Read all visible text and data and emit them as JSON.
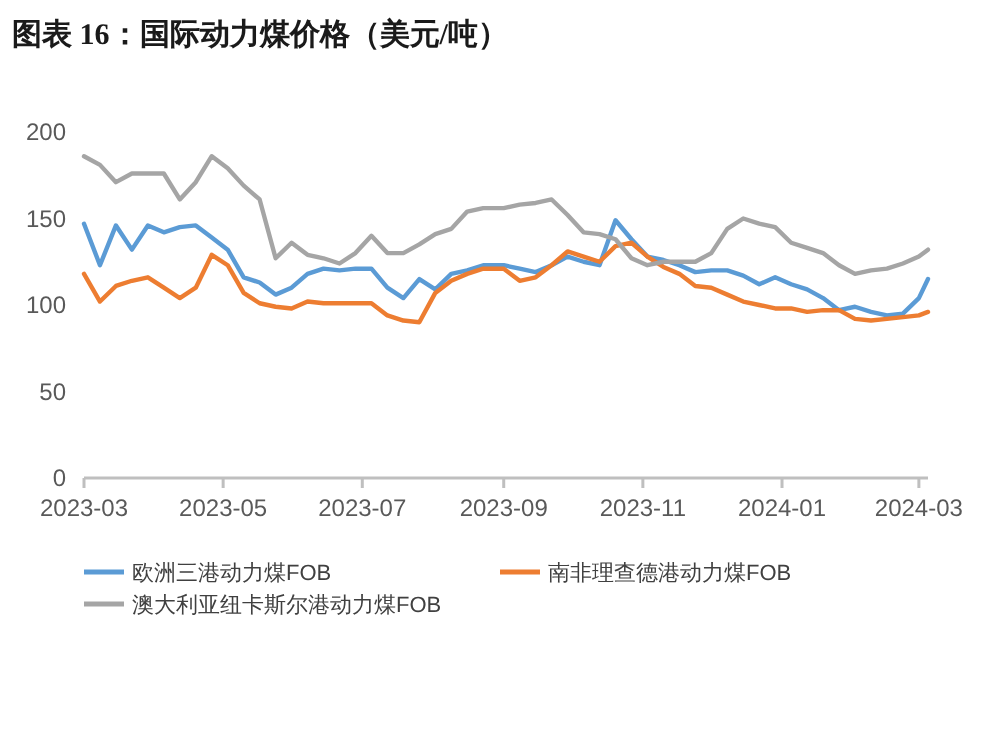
{
  "chart_data": {
    "type": "line",
    "title": "图表 16：国际动力煤价格（美元/吨）",
    "x": [
      "2023-03-01",
      "2023-03-08",
      "2023-03-15",
      "2023-03-22",
      "2023-03-29",
      "2023-04-05",
      "2023-04-12",
      "2023-04-19",
      "2023-04-26",
      "2023-05-03",
      "2023-05-10",
      "2023-05-17",
      "2023-05-24",
      "2023-05-31",
      "2023-06-07",
      "2023-06-14",
      "2023-06-21",
      "2023-06-28",
      "2023-07-05",
      "2023-07-12",
      "2023-07-19",
      "2023-07-26",
      "2023-08-02",
      "2023-08-09",
      "2023-08-16",
      "2023-08-23",
      "2023-09-01",
      "2023-09-08",
      "2023-09-15",
      "2023-09-22",
      "2023-09-29",
      "2023-10-06",
      "2023-10-13",
      "2023-10-20",
      "2023-10-27",
      "2023-11-03",
      "2023-11-10",
      "2023-11-17",
      "2023-11-24",
      "2023-12-01",
      "2023-12-08",
      "2023-12-15",
      "2023-12-22",
      "2023-12-29",
      "2024-01-05",
      "2024-01-12",
      "2024-01-19",
      "2024-01-26",
      "2024-02-02",
      "2024-02-09",
      "2024-02-16",
      "2024-02-23",
      "2024-03-01",
      "2024-03-05"
    ],
    "series": [
      {
        "name": "欧洲三港动力煤FOB",
        "color": "#5b9bd5",
        "values": [
          147,
          123,
          146,
          132,
          146,
          142,
          145,
          146,
          139,
          132,
          116,
          113,
          106,
          110,
          118,
          121,
          120,
          121,
          121,
          110,
          104,
          115,
          109,
          118,
          120,
          123,
          123,
          121,
          119,
          123,
          128,
          125,
          123,
          149,
          138,
          128,
          126,
          123,
          119,
          120,
          120,
          117,
          112,
          116,
          112,
          109,
          104,
          97,
          99,
          96,
          94,
          95,
          104,
          115
        ]
      },
      {
        "name": "南非理查德港动力煤FOB",
        "color": "#ed7d31",
        "values": [
          118,
          102,
          111,
          114,
          116,
          110,
          104,
          110,
          129,
          123,
          107,
          101,
          99,
          98,
          102,
          101,
          101,
          101,
          101,
          94,
          91,
          90,
          107,
          114,
          118,
          121,
          121,
          114,
          116,
          123,
          131,
          128,
          125,
          134,
          136,
          128,
          122,
          118,
          111,
          110,
          106,
          102,
          100,
          98,
          98,
          96,
          97,
          97,
          92,
          91,
          92,
          93,
          94,
          96
        ]
      },
      {
        "name": "澳大利亚纽卡斯尔港动力煤FOB",
        "color": "#a5a5a5",
        "values": [
          186,
          181,
          171,
          176,
          176,
          176,
          161,
          171,
          186,
          179,
          169,
          161,
          127,
          136,
          129,
          127,
          124,
          130,
          140,
          130,
          130,
          135,
          141,
          144,
          154,
          156,
          156,
          158,
          159,
          161,
          152,
          142,
          141,
          138,
          127,
          123,
          125,
          125,
          125,
          130,
          144,
          150,
          147,
          145,
          136,
          133,
          130,
          123,
          118,
          120,
          121,
          124,
          128,
          132
        ]
      }
    ],
    "xlim": [
      "2023-03-01",
      "2024-03-05"
    ],
    "xticks": [
      "2023-03",
      "2023-05",
      "2023-07",
      "2023-09",
      "2023-11",
      "2024-01",
      "2024-03"
    ],
    "ylim": [
      0,
      200
    ],
    "yticks": [
      0,
      50,
      100,
      150,
      200
    ],
    "legend": "bottom",
    "marker": "none",
    "line_style": "solid"
  }
}
